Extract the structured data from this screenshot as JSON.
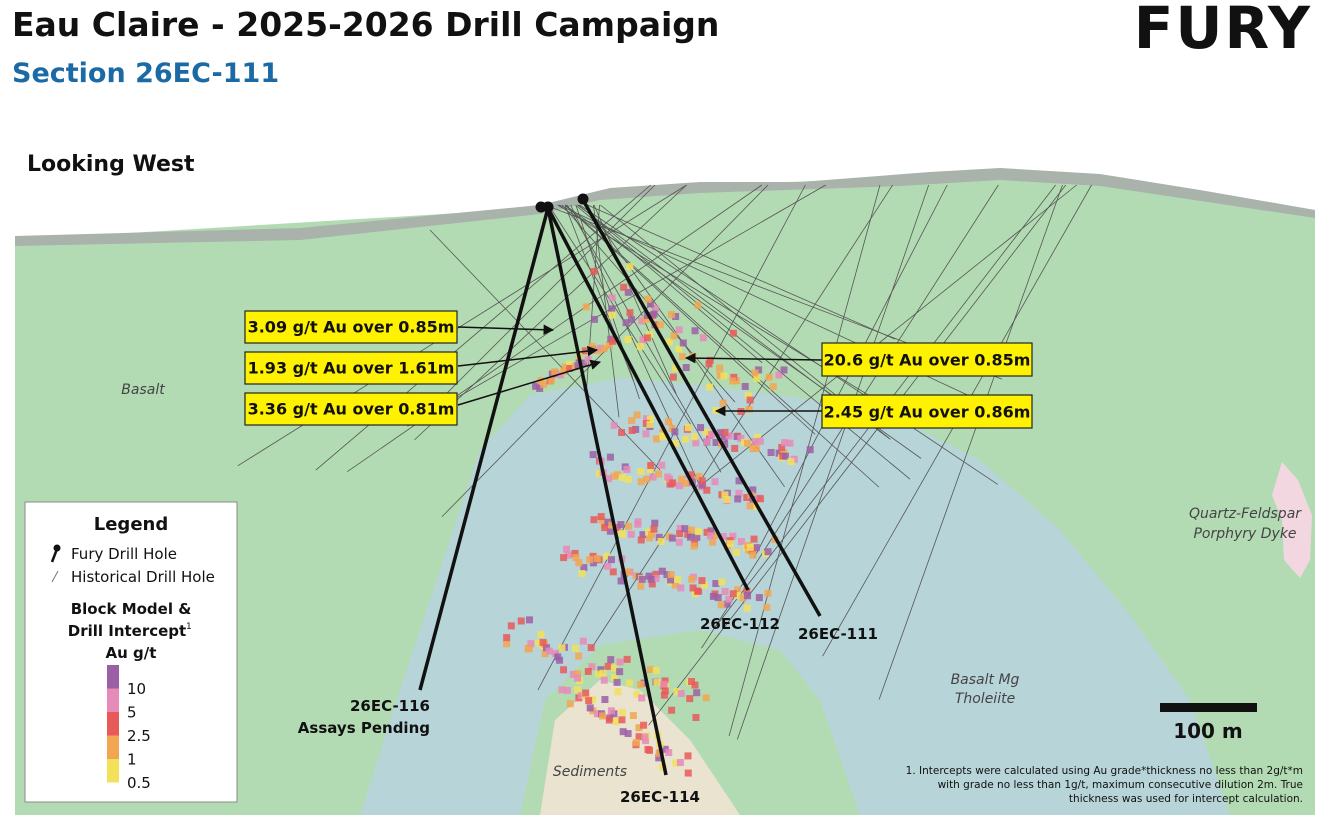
{
  "header": {
    "title": "Eau Claire - 2025-2026 Drill Campaign",
    "subtitle": "Section 26EC-111",
    "logo": "FURY"
  },
  "view": "Looking West",
  "rock_units": {
    "basalt": "Basalt",
    "dyke": [
      "Quartz-Feldspar",
      "Porphyry Dyke"
    ],
    "tholeiite": [
      "Basalt Mg",
      "Tholeiite"
    ],
    "sediments": "Sediments"
  },
  "intercepts": [
    "3.09 g/t Au over 0.85m",
    "1.93 g/t Au over 1.61m",
    "3.36 g/t Au over 0.81m",
    "20.6 g/t Au over 0.85m",
    "2.45 g/t Au over 0.86m"
  ],
  "holes": {
    "h116": [
      "26EC-116",
      "Assays Pending"
    ],
    "h112": "26EC-112",
    "h111": "26EC-111",
    "h114": "26EC-114"
  },
  "legend": {
    "title": "Legend",
    "fury": "Fury Drill Hole",
    "historical": "Historical Drill Hole",
    "block_title": [
      "Block Model &",
      "Drill Intercept"
    ],
    "footnote_mark": "1",
    "unit": "Au g/t",
    "scale": [
      "10",
      "5",
      "2.5",
      "1",
      "0.5"
    ]
  },
  "scale_bar": "100 m",
  "footnote": [
    "1.  Intercepts were calculated using Au grade*thickness no less than 2g/t*m",
    "with grade no less than 1g/t, maximum consecutive dilution 2m. True",
    "thickness was used for intercept calculation."
  ]
}
